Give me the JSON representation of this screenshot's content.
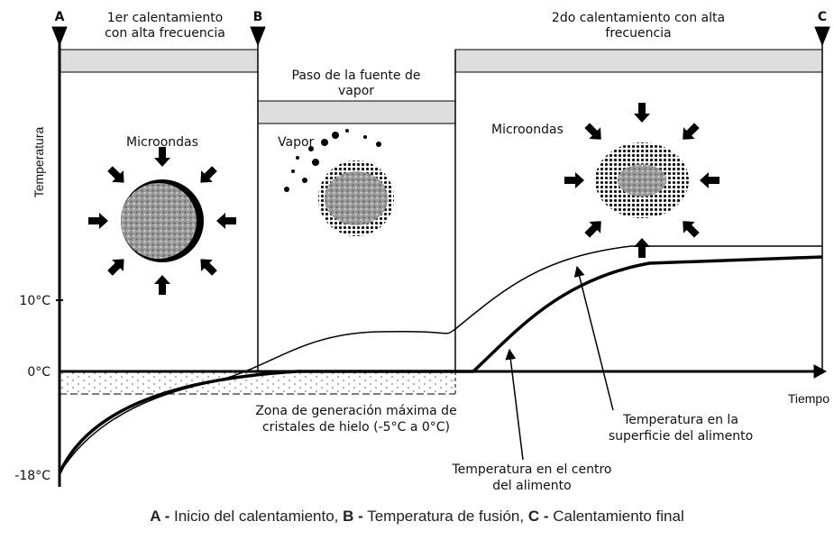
{
  "markers": [
    "A",
    "B",
    "C"
  ],
  "phases": [
    {
      "lines": [
        "1er calentamiento",
        "con alta frecuencia"
      ],
      "icon_label": "Microondas"
    },
    {
      "lines": [
        "Paso de la fuente de",
        "vapor"
      ],
      "icon_label": "Vapor"
    },
    {
      "lines": [
        "2do calentamiento con alta",
        "frecuencia"
      ],
      "icon_label": "Microondas"
    }
  ],
  "y_axis": {
    "title": "Temperatura",
    "labels": [
      "10°C",
      "0°C",
      "-18°C"
    ]
  },
  "x_axis": {
    "title": "Tiempo"
  },
  "annotations": {
    "ice_zone": [
      "Zona de generación máxima de",
      "cristales de hielo (-5°C a 0°C)"
    ],
    "surface": [
      "Temperatura en la",
      "superficie del alimento"
    ],
    "center": [
      "Temperatura en el centro",
      "del alimento"
    ]
  },
  "caption": [
    {
      "key": "A -",
      "text": "Inicio del calentamiento,"
    },
    {
      "key": "B -",
      "text": "Temperatura de fusión,"
    },
    {
      "key": "C -",
      "text": "Calentamiento final"
    }
  ]
}
